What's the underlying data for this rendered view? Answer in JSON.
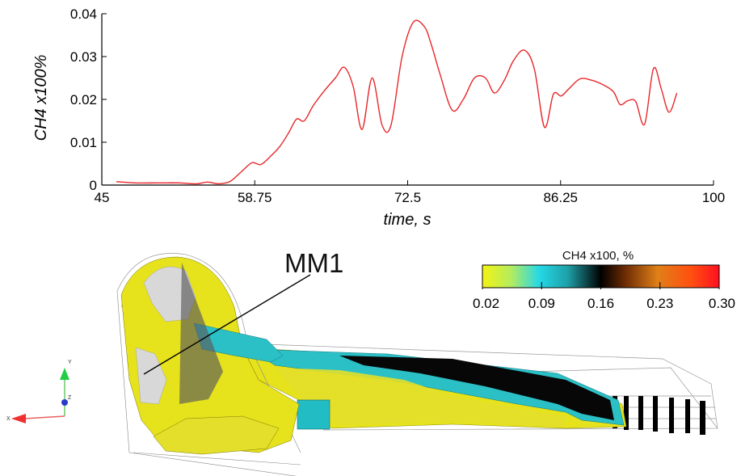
{
  "chart_data": {
    "type": "line",
    "title": "",
    "xlabel": "time, s",
    "ylabel": "CH4 x100%",
    "xlim": [
      45,
      100
    ],
    "ylim": [
      0,
      0.04
    ],
    "x_ticks": [
      "45",
      "58.75",
      "72.5",
      "86.25",
      "100"
    ],
    "y_ticks": [
      "0",
      "0.01",
      "0.02",
      "0.03",
      "0.04"
    ],
    "grid": false,
    "series": [
      {
        "color": "#e8272a",
        "x": [
          46.3,
          48,
          50,
          52,
          53.5,
          54.5,
          55.5,
          56.5,
          57.5,
          58.5,
          59.3,
          60.2,
          61,
          61.8,
          62.5,
          63.2,
          64,
          65,
          66,
          66.8,
          67.6,
          68.4,
          69.3,
          70.2,
          71,
          72,
          73,
          74,
          74.6,
          75.4,
          76.5,
          77.5,
          78.5,
          79.5,
          80.3,
          81.2,
          82,
          83,
          83.9,
          84.8,
          85.6,
          86.3,
          87,
          88,
          89,
          90,
          91,
          91.6,
          92.3,
          93,
          93.8,
          94.6,
          95.3,
          96,
          96.7
        ],
        "values": [
          0.0008,
          0.0005,
          0.0005,
          0.0005,
          0.0003,
          0.0007,
          0.0003,
          0.0008,
          0.003,
          0.0052,
          0.0048,
          0.0068,
          0.009,
          0.0122,
          0.0154,
          0.015,
          0.0185,
          0.022,
          0.025,
          0.0275,
          0.023,
          0.013,
          0.025,
          0.014,
          0.014,
          0.03,
          0.038,
          0.037,
          0.033,
          0.026,
          0.0175,
          0.02,
          0.025,
          0.025,
          0.0215,
          0.0245,
          0.029,
          0.0315,
          0.027,
          0.0135,
          0.0212,
          0.0208,
          0.0225,
          0.0248,
          0.0245,
          0.0235,
          0.0218,
          0.0188,
          0.0197,
          0.0195,
          0.0142,
          0.0272,
          0.0225,
          0.017,
          0.0215
        ]
      }
    ]
  },
  "figure": {
    "label": "MM1",
    "axes_triad": {
      "x": "X",
      "y": "Y",
      "z": "Z"
    }
  },
  "colorbar": {
    "title": "CH4 x100, %",
    "ticks": [
      "0.02",
      "0.09",
      "0.16",
      "0.23",
      "0.30"
    ],
    "stops": [
      "#f3f312",
      "#b5ec5e",
      "#25d8e6",
      "#1ea0a8",
      "#000000",
      "#6a2a04",
      "#e08018",
      "#ff5010",
      "#ff1020"
    ]
  },
  "colors": {
    "line": "#e8272a",
    "isosurface_yellow": "#e9e51a",
    "isosurface_cyan": "#2cc1c8",
    "dark": "#000000"
  }
}
